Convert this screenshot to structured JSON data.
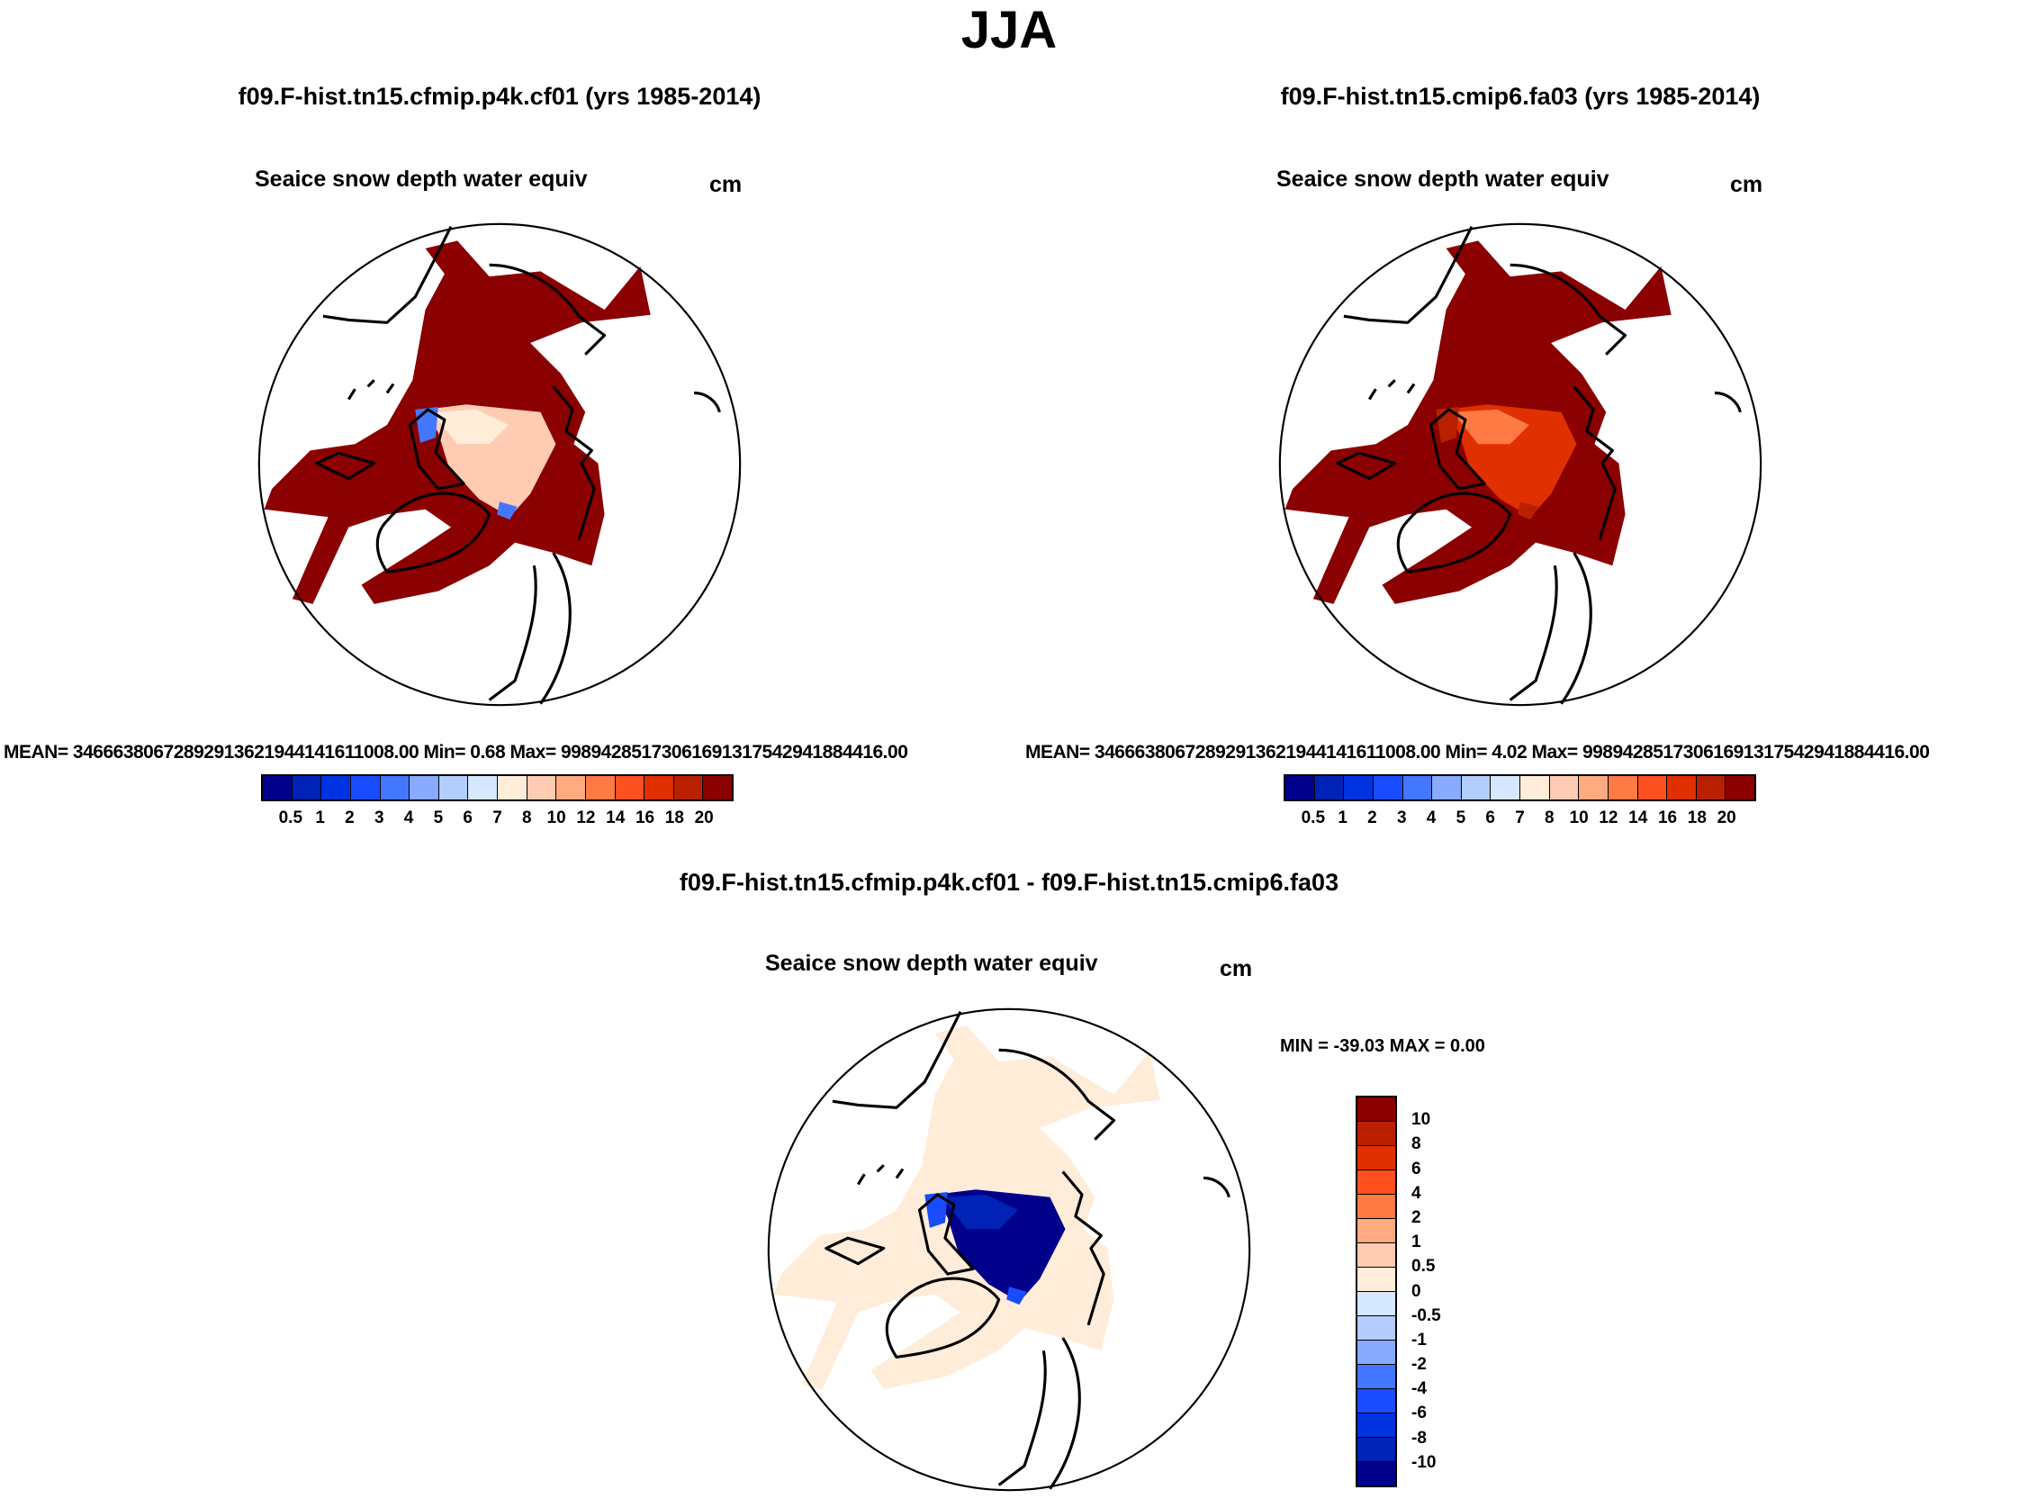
{
  "figure": {
    "title": "JJA",
    "panels": [
      {
        "title": "f09.F-hist.tn15.cfmip.p4k.cf01 (yrs 1985-2014)",
        "variable": "Seaice snow depth water equiv",
        "units": "cm",
        "stats": "MEAN= 34666380672892913621944141611008.00  Min=   0.68  Max= 99894285173061691317542941884416.00",
        "outer_fill": "#8b0000",
        "inner_fill": "#ffccb3",
        "inner_fill2": "#ffecd9",
        "edge_fill": "#4477ff"
      },
      {
        "title": "f09.F-hist.tn15.cmip6.fa03 (yrs 1985-2014)",
        "variable": "Seaice snow depth water equiv",
        "units": "cm",
        "stats": "MEAN= 34666380672892913621944141611008.00  Min=   4.02  Max= 99894285173061691317542941884416.00",
        "outer_fill": "#8b0000",
        "inner_fill": "#e03000",
        "inner_fill2": "#ff7a45",
        "edge_fill": "#b82000"
      },
      {
        "title": "f09.F-hist.tn15.cfmip.p4k.cf01 - f09.F-hist.tn15.cmip6.fa03",
        "variable": "Seaice snow depth water equiv",
        "units": "cm",
        "stats": "MIN = -39.03 MAX =   0.00",
        "outer_fill": "#ffecd9",
        "inner_fill": "#00008b",
        "inner_fill2": "#0022b5",
        "edge_fill": "#1a4cff"
      }
    ]
  },
  "chart_data": [
    {
      "type": "heatmap",
      "projection": "north polar stereographic",
      "title": "f09.F-hist.tn15.cfmip.p4k.cf01 (yrs 1985-2014)",
      "variable": "Seaice snow depth water equiv",
      "units": "cm",
      "mean": 3.4666380672892914e+31,
      "min": 0.68,
      "max": 9.98942851730617e+31,
      "colorbar_levels": [
        "0.5",
        "1",
        "2",
        "3",
        "4",
        "5",
        "6",
        "7",
        "8",
        "10",
        "12",
        "14",
        "16",
        "18",
        "20"
      ],
      "colorbar_colors": [
        "#00008b",
        "#0022b5",
        "#0033e0",
        "#1a4cff",
        "#4477ff",
        "#88aaff",
        "#b3cdff",
        "#d6e8ff",
        "#ffecd9",
        "#ffccb3",
        "#ffaa80",
        "#ff7a45",
        "#ff5020",
        "#e03000",
        "#b82000",
        "#8b0000"
      ],
      "legend": "bottom"
    },
    {
      "type": "heatmap",
      "projection": "north polar stereographic",
      "title": "f09.F-hist.tn15.cmip6.fa03 (yrs 1985-2014)",
      "variable": "Seaice snow depth water equiv",
      "units": "cm",
      "mean": 3.4666380672892914e+31,
      "min": 4.02,
      "max": 9.98942851730617e+31,
      "colorbar_levels": [
        "0.5",
        "1",
        "2",
        "3",
        "4",
        "5",
        "6",
        "7",
        "8",
        "10",
        "12",
        "14",
        "16",
        "18",
        "20"
      ],
      "colorbar_colors": [
        "#00008b",
        "#0022b5",
        "#0033e0",
        "#1a4cff",
        "#4477ff",
        "#88aaff",
        "#b3cdff",
        "#d6e8ff",
        "#ffecd9",
        "#ffccb3",
        "#ffaa80",
        "#ff7a45",
        "#ff5020",
        "#e03000",
        "#b82000",
        "#8b0000"
      ],
      "legend": "bottom"
    },
    {
      "type": "heatmap",
      "projection": "north polar stereographic",
      "title": "f09.F-hist.tn15.cfmip.p4k.cf01 - f09.F-hist.tn15.cmip6.fa03",
      "variable": "Seaice snow depth water equiv",
      "units": "cm",
      "min": -39.03,
      "max": 0.0,
      "colorbar_levels": [
        "10",
        "8",
        "6",
        "4",
        "2",
        "1",
        "0.5",
        "0",
        "-0.5",
        "-1",
        "-2",
        "-4",
        "-6",
        "-8",
        "-10"
      ],
      "colorbar_colors": [
        "#8b0000",
        "#b82000",
        "#e03000",
        "#ff5020",
        "#ff7a45",
        "#ffaa80",
        "#ffccb3",
        "#ffecd9",
        "#d6e8ff",
        "#b3cdff",
        "#88aaff",
        "#4477ff",
        "#1a4cff",
        "#0033e0",
        "#0022b5",
        "#00008b"
      ],
      "legend": "right"
    }
  ]
}
